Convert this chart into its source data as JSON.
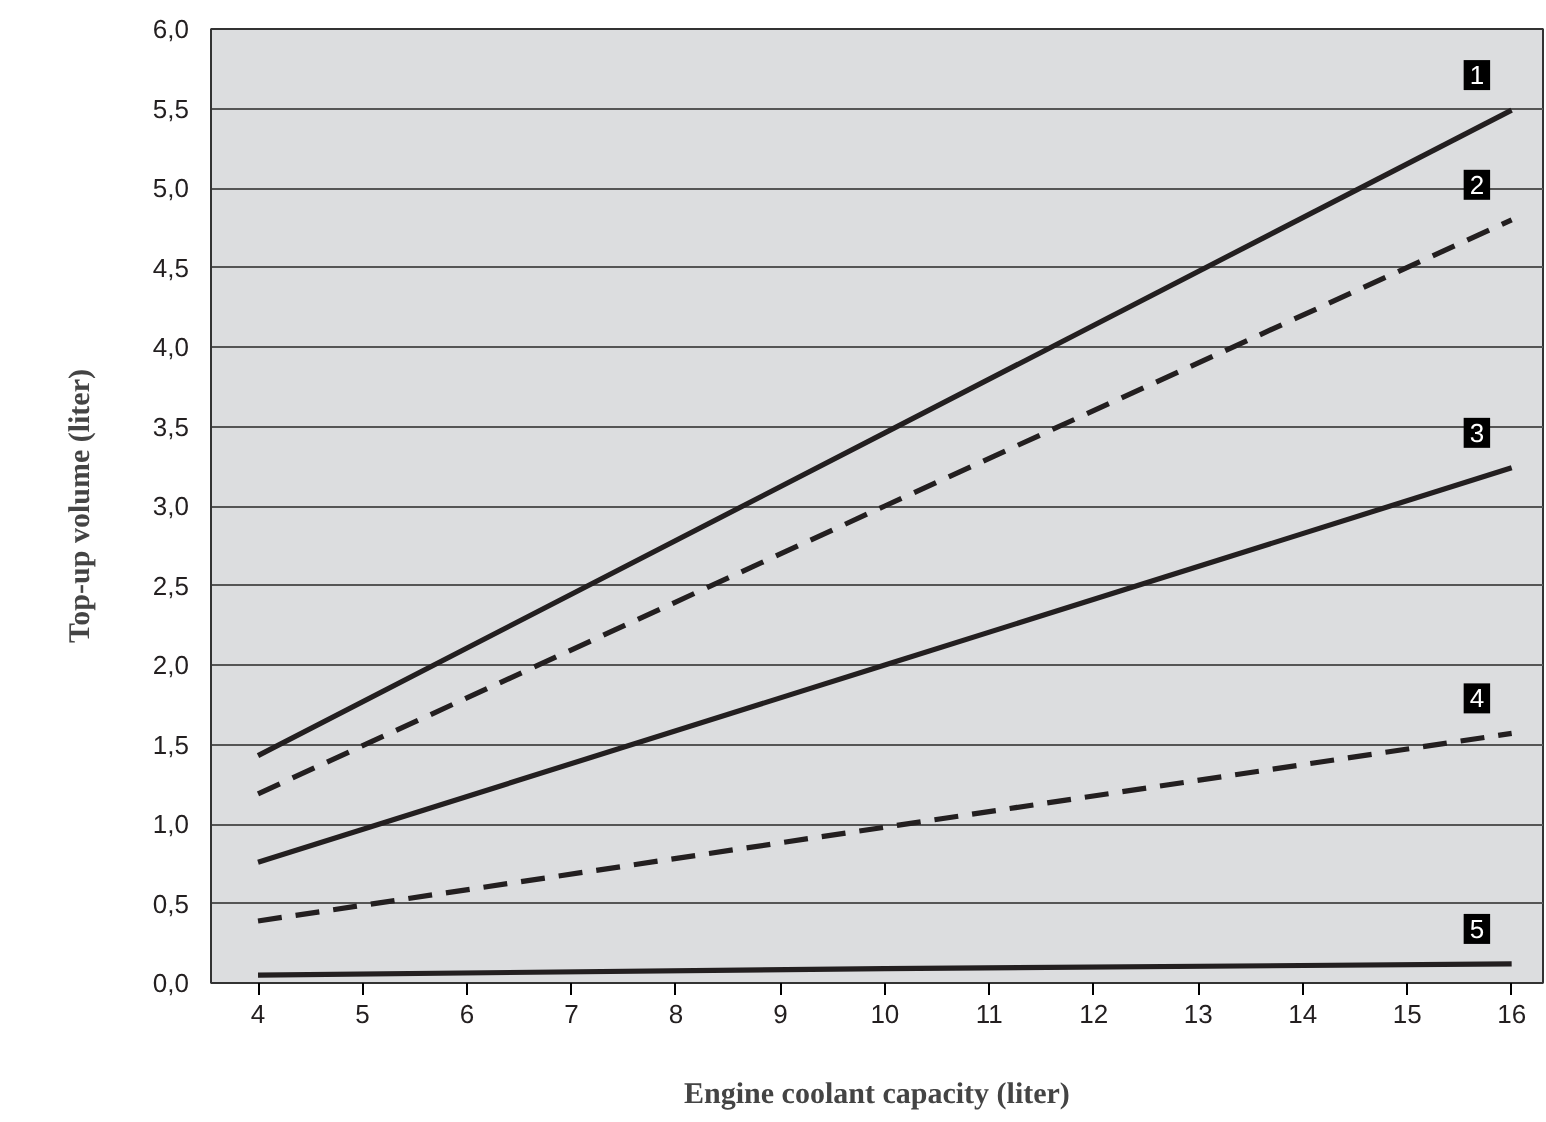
{
  "chart_data": {
    "type": "line",
    "xlabel": "Engine coolant capacity (liter)",
    "ylabel": "Top-up volume (liter)",
    "x": [
      4,
      10,
      16
    ],
    "series": [
      {
        "name": "1",
        "color": "#231f20",
        "line_style": "solid",
        "values": [
          1.43,
          3.46,
          5.49
        ]
      },
      {
        "name": "2",
        "color": "#231f20",
        "line_style": "dashed",
        "values": [
          1.19,
          3.0,
          4.8
        ]
      },
      {
        "name": "3",
        "color": "#231f20",
        "line_style": "solid",
        "values": [
          0.76,
          2.0,
          3.24
        ]
      },
      {
        "name": "4",
        "color": "#231f20",
        "line_style": "dashed",
        "values": [
          0.39,
          0.98,
          1.57
        ]
      },
      {
        "name": "5",
        "color": "#231f20",
        "line_style": "solid",
        "values": [
          0.05,
          0.09,
          0.12
        ]
      }
    ],
    "xlim": [
      3.55,
      16.3
    ],
    "ylim": [
      0,
      6
    ],
    "xticks": [
      4,
      5,
      6,
      7,
      8,
      9,
      10,
      11,
      12,
      13,
      14,
      15,
      16
    ],
    "yticks": [
      {
        "value": 0,
        "label": "0,0"
      },
      {
        "value": 0.5,
        "label": "0,5"
      },
      {
        "value": 1,
        "label": "1,0"
      },
      {
        "value": 1.5,
        "label": "1,5"
      },
      {
        "value": 2,
        "label": "2,0"
      },
      {
        "value": 2.5,
        "label": "2,5"
      },
      {
        "value": 3,
        "label": "3,0"
      },
      {
        "value": 3.5,
        "label": "3,5"
      },
      {
        "value": 4,
        "label": "4,0"
      },
      {
        "value": 4.5,
        "label": "4,5"
      },
      {
        "value": 5,
        "label": "5,0"
      },
      {
        "value": 5.5,
        "label": "5,5"
      },
      {
        "value": 6,
        "label": "6,0"
      }
    ],
    "grid": "y",
    "marker": "none"
  }
}
